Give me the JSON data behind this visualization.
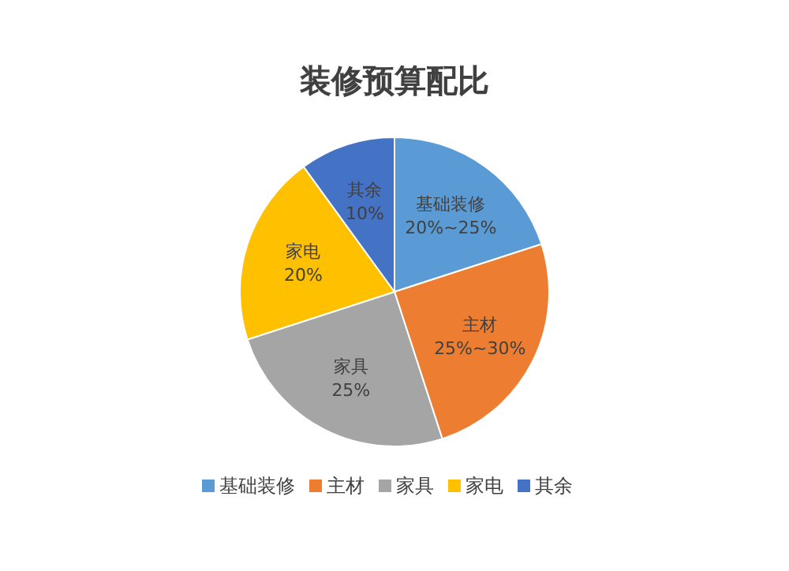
{
  "chart_data": {
    "type": "pie",
    "title": "装修预算配比",
    "categories": [
      "基础装修",
      "主材",
      "家具",
      "家电",
      "其余"
    ],
    "values": [
      20,
      25,
      25,
      20,
      10
    ],
    "value_labels": [
      "20%~25%",
      "25%~30%",
      "25%",
      "20%",
      "10%"
    ],
    "colors": [
      "#5b9bd5",
      "#ed7d31",
      "#a5a5a5",
      "#ffc000",
      "#4472c4"
    ],
    "legend": "bottom"
  }
}
